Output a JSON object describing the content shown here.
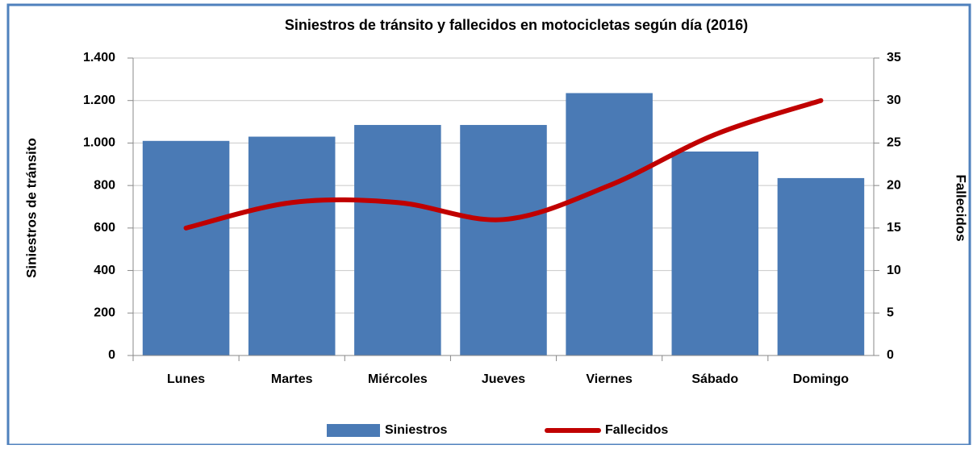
{
  "chart_data": {
    "type": "bar",
    "title": "Siniestros de tránsito y fallecidos en motocicletas según día (2016)",
    "y_label": "Siniestros de tránsito",
    "y2_label": "Fallecidos",
    "categories": [
      "Lunes",
      "Martes",
      "Miércoles",
      "Jueves",
      "Viernes",
      "Sábado",
      "Domingo"
    ],
    "series": [
      {
        "name": "Siniestros",
        "type": "bar",
        "color": "#4a7ab5",
        "values": [
          1010,
          1030,
          1085,
          1085,
          1235,
          960,
          835
        ]
      },
      {
        "name": "Fallecidos",
        "type": "line",
        "axis": "y2",
        "color": "#c00000",
        "smooth": true,
        "values": [
          15,
          18,
          18,
          16,
          20,
          26,
          30
        ]
      }
    ],
    "ylim": [
      0,
      1400
    ],
    "yticks": [
      0,
      200,
      400,
      600,
      800,
      {
        "value": 1000,
        "label": "1.000"
      },
      {
        "value": 1200,
        "label": "1.200"
      },
      {
        "value": 1400,
        "label": "1.400"
      }
    ],
    "y2lim": [
      0,
      35
    ],
    "y2ticks": [
      0,
      5,
      10,
      15,
      20,
      25,
      30,
      35
    ],
    "grid": true,
    "legend": "bottom"
  }
}
